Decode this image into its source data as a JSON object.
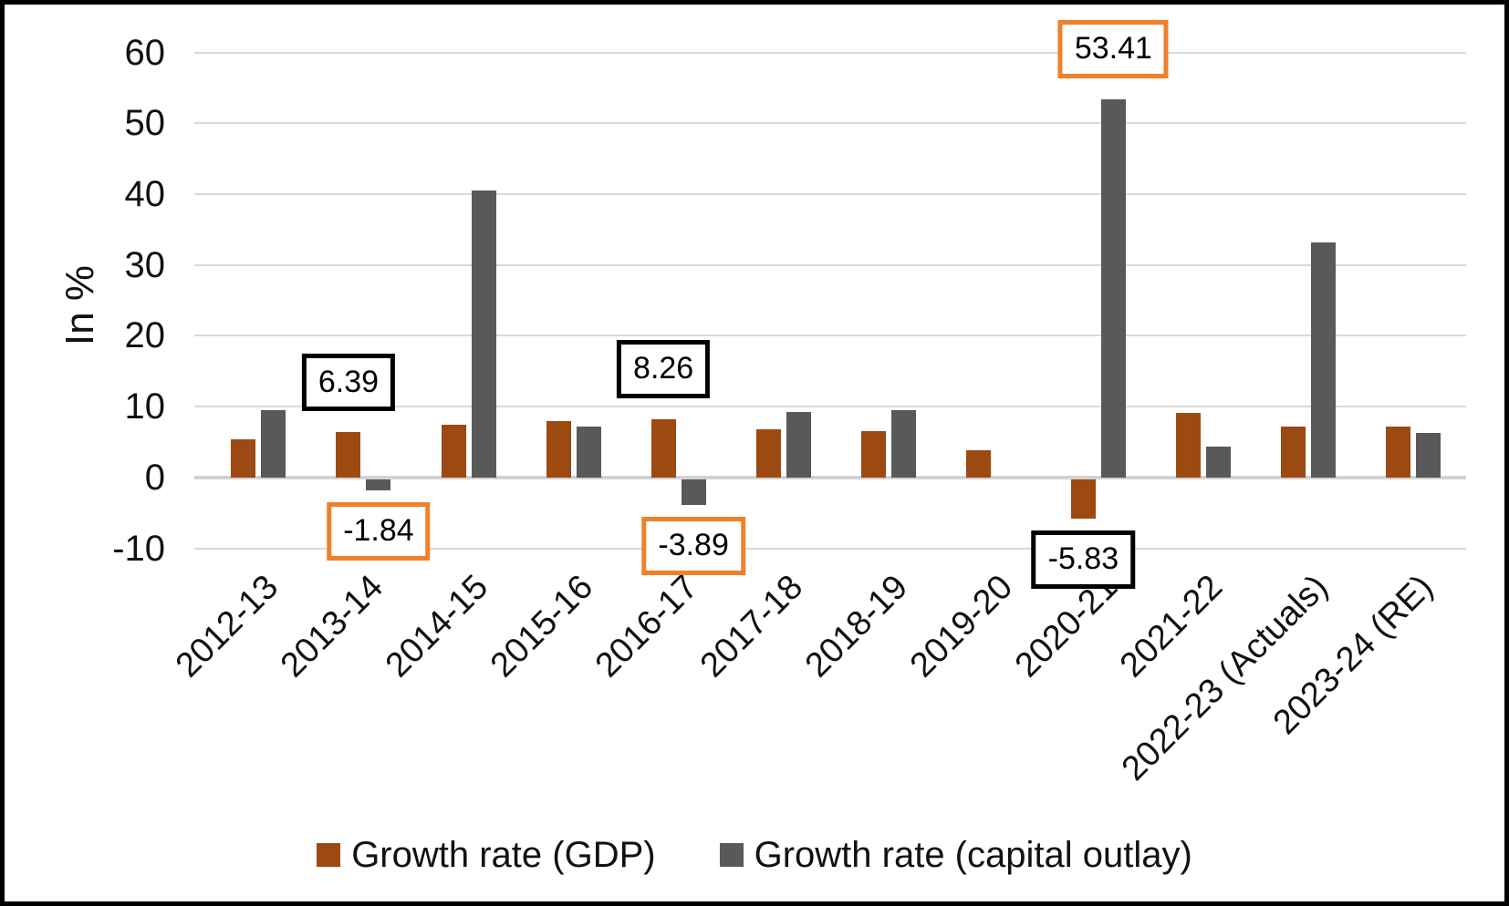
{
  "chart_data": {
    "type": "bar",
    "title": "",
    "ylabel": "In %",
    "xlabel": "",
    "ylim": [
      -10,
      60
    ],
    "yticks": [
      60,
      50,
      40,
      30,
      20,
      10,
      0,
      -10
    ],
    "grid": true,
    "legend_position": "bottom",
    "categories": [
      "2012-13",
      "2013-14",
      "2014-15",
      "2015-16",
      "2016-17",
      "2017-18",
      "2018-19",
      "2019-20",
      "2020-21",
      "2021-22",
      "2022-23 (Actuals)",
      "2023-24 (RE)"
    ],
    "series": [
      {
        "name": "Growth rate (GDP)",
        "color": "#9C4A12",
        "values": [
          5.4,
          6.39,
          7.4,
          8.0,
          8.26,
          6.8,
          6.5,
          3.9,
          -5.83,
          9.1,
          7.2,
          7.2
        ]
      },
      {
        "name": "Growth rate (capital outlay)",
        "color": "#595959",
        "values": [
          9.5,
          -1.84,
          40.5,
          7.2,
          -3.89,
          9.2,
          9.5,
          0,
          53.41,
          4.3,
          33.2,
          6.3
        ]
      }
    ],
    "callouts": [
      {
        "category": "2013-14",
        "series": "Growth rate (GDP)",
        "text": "6.39",
        "border": "#000000"
      },
      {
        "category": "2013-14",
        "series": "Growth rate (capital outlay)",
        "text": "-1.84",
        "border": "#F0802A"
      },
      {
        "category": "2016-17",
        "series": "Growth rate (GDP)",
        "text": "8.26",
        "border": "#000000"
      },
      {
        "category": "2016-17",
        "series": "Growth rate (capital outlay)",
        "text": "-3.89",
        "border": "#F0802A"
      },
      {
        "category": "2020-21",
        "series": "Growth rate (capital outlay)",
        "text": "53.41",
        "border": "#F0802A"
      },
      {
        "category": "2020-21",
        "series": "Growth rate (GDP)",
        "text": "-5.83",
        "border": "#000000"
      }
    ],
    "colors": {
      "gridline": "#D9D9D9",
      "gdp_bar": "#9C4A12",
      "capital_outlay_bar": "#595959",
      "callout_border_black": "#000000",
      "callout_border_orange": "#F0802A"
    }
  }
}
